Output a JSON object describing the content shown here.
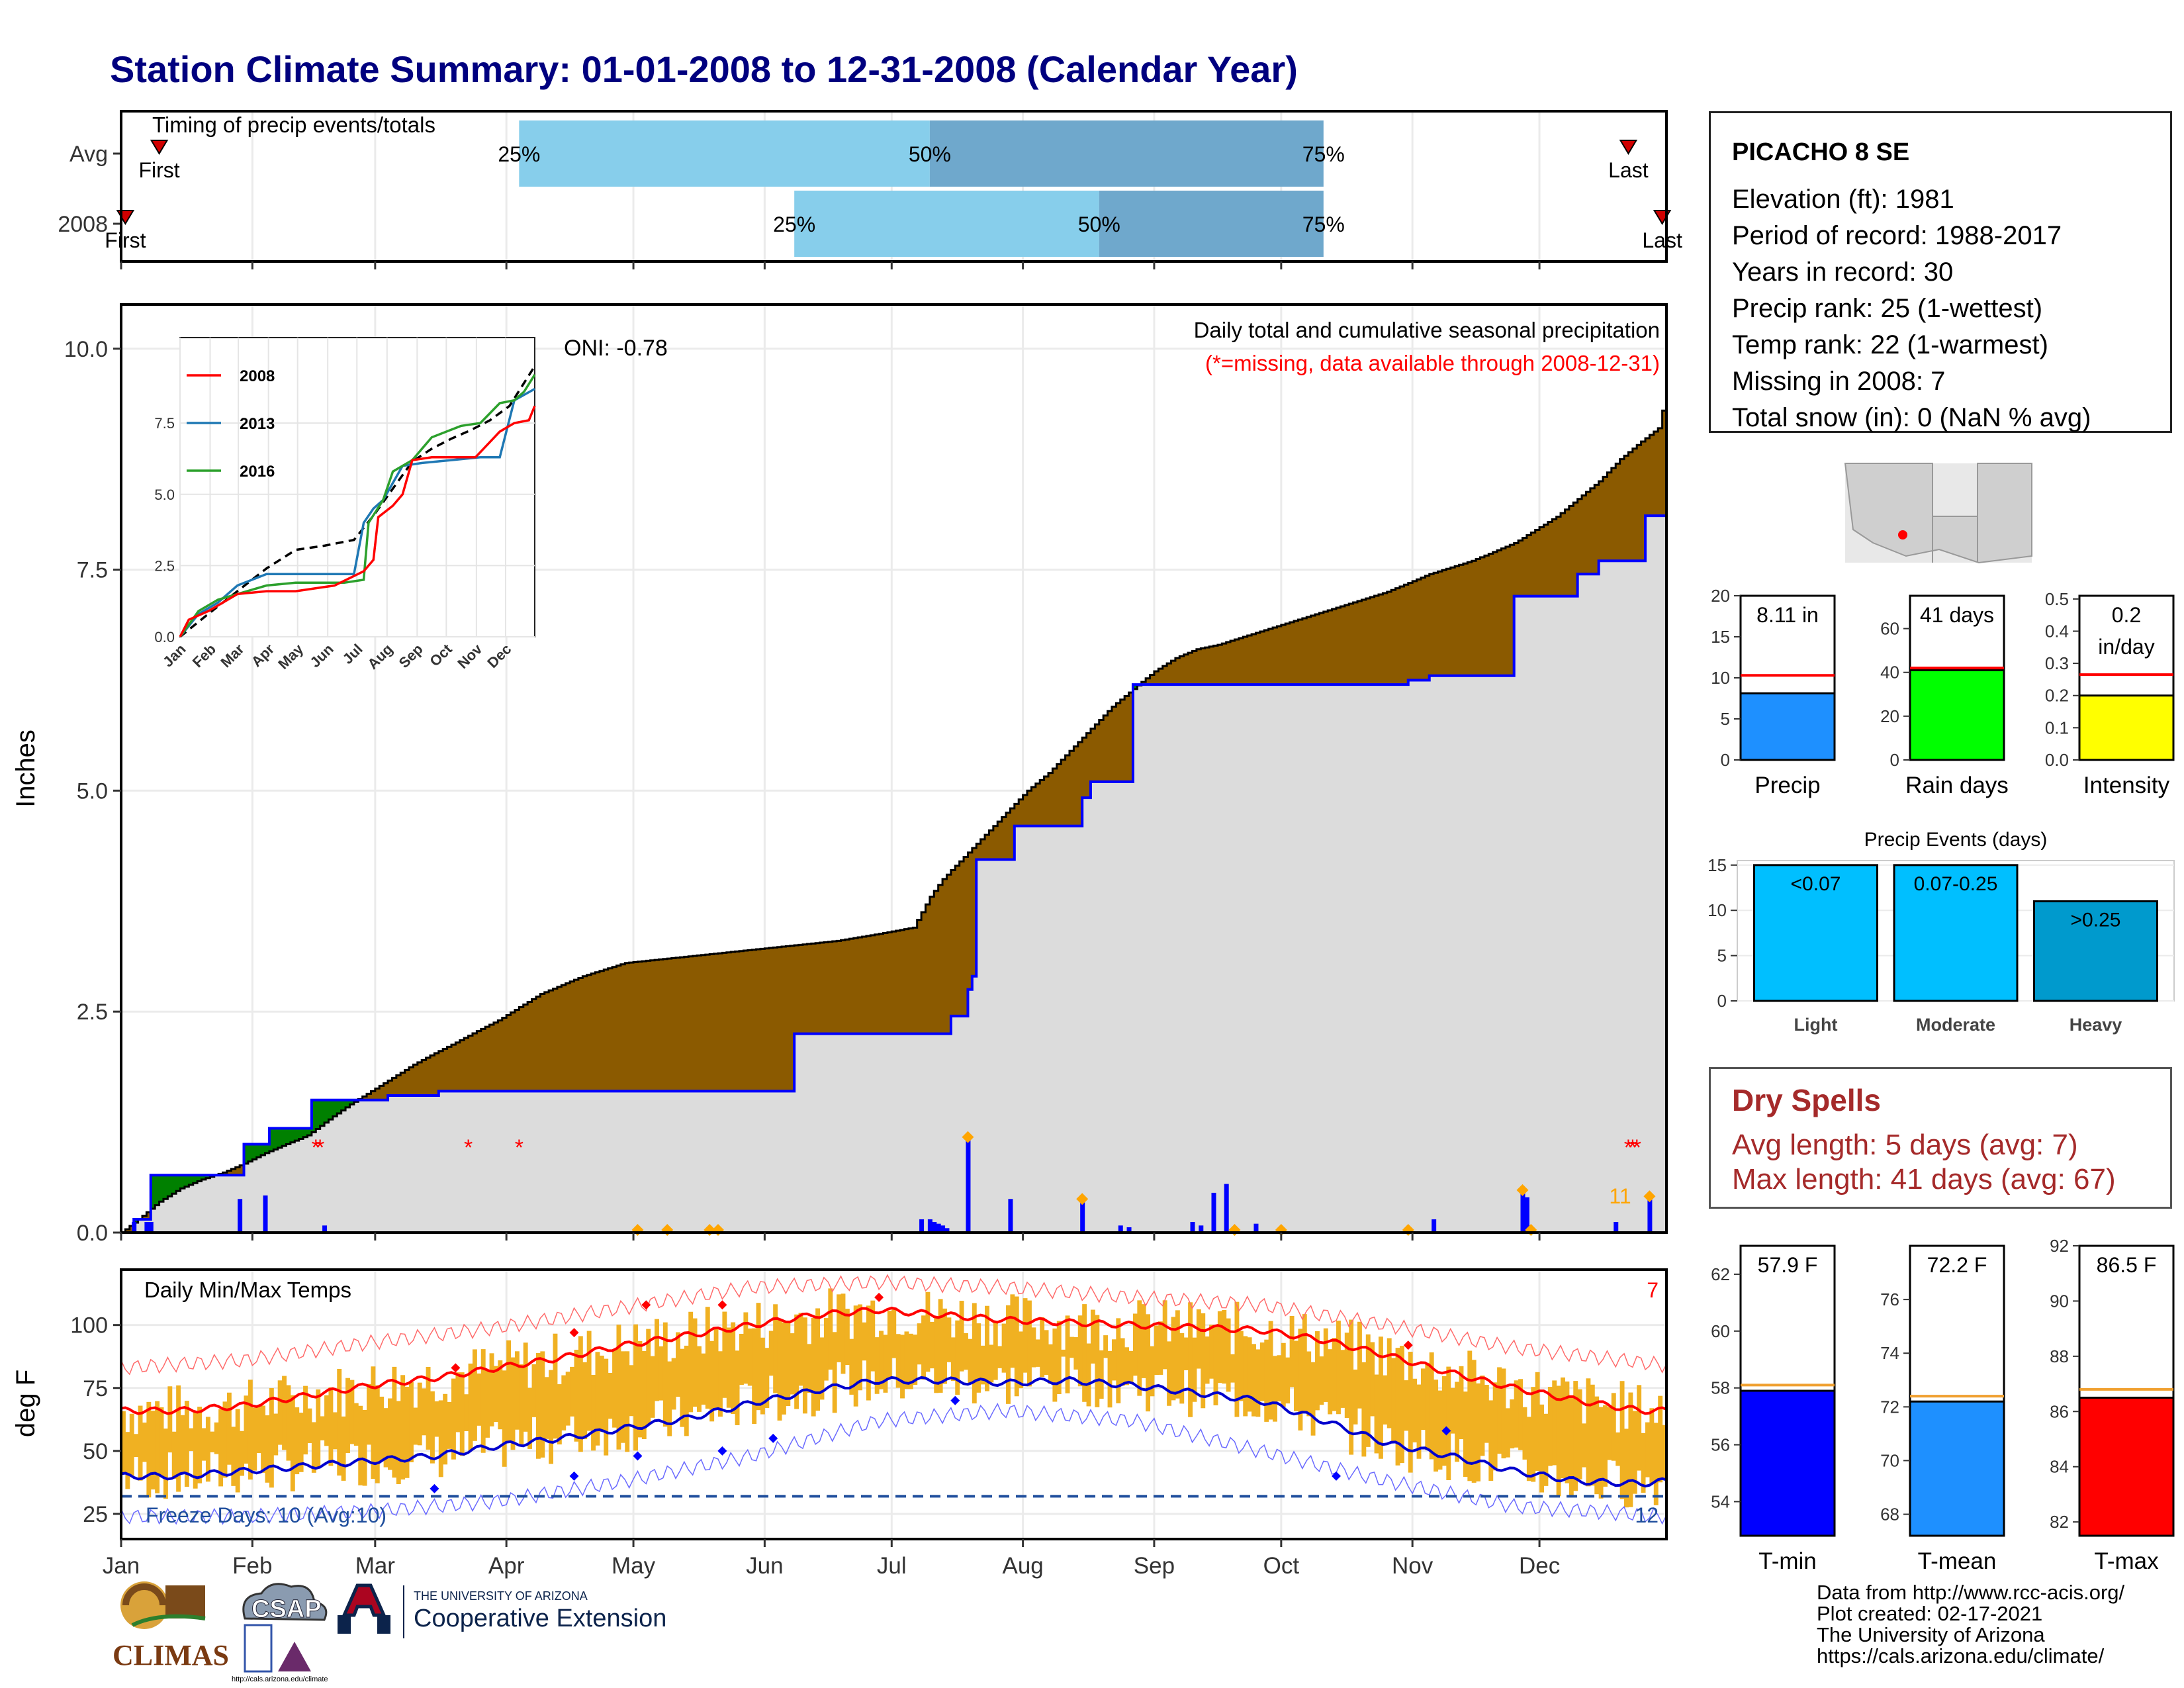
{
  "title": "Station Climate Summary: 01-01-2008 to 12-31-2008 (Calendar Year)",
  "info": {
    "station": "PICACHO 8 SE",
    "lines": [
      "Elevation (ft): 1981",
      "Period of record: 1988-2017",
      "Years in record: 30",
      "Precip rank: 25 (1-wettest)",
      "Temp rank: 22 (1-warmest)",
      "Missing in 2008: 7",
      "Total snow (in): 0 (NaN % avg)"
    ]
  },
  "dry_spells": {
    "heading": "Dry Spells",
    "avg": "Avg length: 5 days (avg: 7)",
    "max": "Max length: 41 days (avg: 67)"
  },
  "credits": [
    "Data from http://www.rcc-acis.org/",
    "Plot created: 02-17-2021",
    "The University of Arizona",
    "https://cals.arizona.edu/climate/"
  ],
  "logos": {
    "climas": "CLIMAS",
    "csap": "CSAP",
    "ua_small": "THE UNIVERSITY OF ARIZONA",
    "ua_big": "Cooperative Extension",
    "csap_url": "http://cals.arizona.edu/climate"
  },
  "colors": {
    "title": "#00007f",
    "observed_fill": "#dcdcdc",
    "deficit_fill": "#8b5a00",
    "surplus_fill": "#008000",
    "daily_bar": "#0000ff",
    "temp_bar": "#f0b122",
    "tmax_line": "#ff0000",
    "tmin_line": "#0000cd",
    "q_light": "#87ceeb",
    "q_dark": "#6fa8cc"
  },
  "timing_panel": {
    "label": "Timing of precip events/totals",
    "rows": [
      {
        "name": "Avg",
        "first_doy": 10,
        "q25_doy": 95,
        "q50_doy": 192,
        "q75_doy": 285,
        "last_doy": 357,
        "first_label": "First",
        "last_label": "Last"
      },
      {
        "name": "2008",
        "first_doy": 2,
        "q25_doy": 160,
        "q50_doy": 232,
        "q75_doy": 285,
        "last_doy": 365,
        "first_label": "First",
        "last_label": "Last"
      }
    ],
    "q_labels": [
      "25%",
      "50%",
      "75%"
    ]
  },
  "chart_data": [
    {
      "type": "area",
      "name": "cumulative_precip",
      "title": "Daily total and cumulative seasonal precipitation",
      "subtitle": "(*=missing, data available through 2008-12-31)",
      "oni": "ONI: -0.78",
      "ylabel": "Inches",
      "ylim": [
        0,
        10.5
      ],
      "yticks": [
        0,
        2.5,
        5,
        7.5,
        10
      ],
      "ytick_labels": [
        "0.0",
        "2.5",
        "5.0",
        "7.5",
        "10.0"
      ],
      "x_doy_range": [
        1,
        366
      ],
      "avg_cumulative": {
        "doy": [
          1,
          5,
          10,
          15,
          20,
          25,
          30,
          35,
          45,
          50,
          55,
          60,
          65,
          70,
          75,
          80,
          85,
          90,
          95,
          100,
          110,
          120,
          130,
          140,
          150,
          160,
          170,
          180,
          188,
          192,
          195,
          200,
          205,
          210,
          215,
          220,
          225,
          230,
          235,
          240,
          245,
          250,
          255,
          260,
          270,
          280,
          290,
          300,
          310,
          320,
          330,
          340,
          350,
          355,
          360,
          364,
          366
        ],
        "values": [
          0,
          0.15,
          0.35,
          0.5,
          0.6,
          0.68,
          0.78,
          0.9,
          1.1,
          1.28,
          1.45,
          1.6,
          1.75,
          1.9,
          2.03,
          2.15,
          2.28,
          2.4,
          2.55,
          2.7,
          2.9,
          3.05,
          3.1,
          3.15,
          3.2,
          3.25,
          3.3,
          3.38,
          3.45,
          3.8,
          4.0,
          4.25,
          4.5,
          4.75,
          5.0,
          5.2,
          5.45,
          5.7,
          5.95,
          6.15,
          6.35,
          6.5,
          6.6,
          6.65,
          6.8,
          6.95,
          7.1,
          7.25,
          7.45,
          7.6,
          7.8,
          8.1,
          8.5,
          8.75,
          8.95,
          9.1,
          9.5
        ]
      },
      "obs_cumulative": {
        "doy": [
          1,
          4,
          8,
          22,
          30,
          30,
          36,
          36,
          46,
          46,
          55,
          64,
          76,
          123,
          145,
          160,
          160,
          180,
          190,
          197,
          201,
          202,
          203,
          210,
          212,
          222,
          228,
          230,
          240,
          250,
          260,
          305,
          310,
          312,
          316,
          330,
          330,
          335,
          345,
          350,
          355,
          360,
          361,
          366
        ],
        "values": [
          0,
          0.15,
          0.65,
          0.65,
          0.78,
          1.0,
          1.0,
          1.18,
          1.18,
          1.5,
          1.5,
          1.55,
          1.6,
          1.6,
          1.6,
          1.72,
          2.25,
          2.25,
          2.25,
          2.45,
          2.75,
          2.9,
          4.22,
          4.22,
          4.6,
          4.6,
          4.92,
          5.1,
          6.2,
          6.2,
          6.2,
          6.25,
          6.3,
          6.3,
          6.3,
          6.3,
          7.2,
          7.2,
          7.45,
          7.6,
          7.6,
          7.6,
          8.11,
          8.11
        ]
      },
      "daily_precip": {
        "doy": [
          4,
          7,
          8,
          29,
          35,
          49,
          190,
          192,
          193,
          194,
          195,
          196,
          201,
          211,
          228,
          237,
          239,
          254,
          256,
          259,
          262,
          269,
          311,
          332,
          333,
          354,
          362
        ],
        "values": [
          0.12,
          0.12,
          0.12,
          0.38,
          0.42,
          0.08,
          0.15,
          0.15,
          0.12,
          0.1,
          0.08,
          0.05,
          1.05,
          0.38,
          0.35,
          0.08,
          0.06,
          0.12,
          0.08,
          0.45,
          0.55,
          0.1,
          0.15,
          0.45,
          0.4,
          0.12,
          0.38
        ]
      },
      "missing_doy": [
        47,
        48,
        83,
        95,
        357,
        358,
        359
      ],
      "missing_marker": "*",
      "orange_marker_doy": [
        123,
        130,
        140,
        142,
        201,
        228,
        264,
        275,
        305,
        332,
        334,
        362
      ],
      "count_label": "11"
    },
    {
      "type": "line",
      "name": "inset_cumulative",
      "series": [
        {
          "name": "2008",
          "color": "#ff0000"
        },
        {
          "name": "2013",
          "color": "#1f78b4"
        },
        {
          "name": "2016",
          "color": "#2ca02c"
        }
      ],
      "xticks": [
        "Jan",
        "Feb",
        "Mar",
        "Apr",
        "May",
        "Jun",
        "Jul",
        "Aug",
        "Sep",
        "Oct",
        "Nov",
        "Dec"
      ],
      "ylim": [
        0,
        10.5
      ],
      "yticks": [
        "0.0",
        "2.5",
        "5.0",
        "7.5"
      ],
      "values": {
        "avg": {
          "doy": [
            1,
            30,
            60,
            90,
            120,
            150,
            180,
            200,
            220,
            240,
            260,
            280,
            300,
            320,
            340,
            366
          ],
          "values": [
            0,
            0.8,
            1.6,
            2.4,
            3.05,
            3.2,
            3.4,
            4.25,
            5.2,
            6.15,
            6.6,
            6.95,
            7.25,
            7.6,
            8.1,
            9.5
          ]
        },
        "2008": {
          "doy": [
            1,
            10,
            30,
            60,
            90,
            120,
            160,
            190,
            200,
            205,
            220,
            230,
            240,
            260,
            305,
            330,
            345,
            360,
            366
          ],
          "values": [
            0,
            0.6,
            0.9,
            1.5,
            1.6,
            1.6,
            1.8,
            2.3,
            2.7,
            4.2,
            4.6,
            5.0,
            6.2,
            6.3,
            6.3,
            7.2,
            7.5,
            7.6,
            8.1
          ]
        },
        "2013": {
          "doy": [
            1,
            20,
            40,
            60,
            90,
            120,
            150,
            180,
            190,
            200,
            210,
            230,
            250,
            280,
            310,
            330,
            345,
            366
          ],
          "values": [
            0,
            0.8,
            1.2,
            1.8,
            2.2,
            2.2,
            2.2,
            2.2,
            4.0,
            4.5,
            4.8,
            6.0,
            6.1,
            6.2,
            6.3,
            6.3,
            8.3,
            8.7
          ]
        },
        "2016": {
          "doy": [
            1,
            20,
            40,
            60,
            90,
            120,
            150,
            170,
            190,
            195,
            210,
            220,
            240,
            260,
            290,
            310,
            330,
            345,
            355,
            366
          ],
          "values": [
            0,
            0.9,
            1.3,
            1.5,
            1.8,
            1.9,
            1.9,
            1.9,
            2.0,
            4.0,
            4.8,
            5.8,
            6.2,
            7.0,
            7.4,
            7.5,
            8.2,
            8.3,
            8.6,
            9.2
          ]
        }
      }
    },
    {
      "type": "bar",
      "name": "daily_temps",
      "title": "Daily Min/Max Temps",
      "ylabel": "deg F",
      "ylim": [
        15,
        122
      ],
      "yticks": [
        25,
        50,
        75,
        100
      ],
      "freeze_label": "Freeze Days: 10 (Avg:10)",
      "freeze_line": 32,
      "top_count": "7",
      "bottom_count": "12",
      "avg_tmax": {
        "doy": [
          1,
          15,
          30,
          45,
          60,
          75,
          90,
          105,
          120,
          135,
          150,
          165,
          180,
          195,
          210,
          225,
          240,
          255,
          270,
          285,
          300,
          315,
          330,
          345,
          360,
          366
        ],
        "values": [
          66,
          66,
          68,
          72,
          76,
          79,
          83,
          87,
          92,
          96,
          100,
          104,
          106,
          104,
          102,
          101,
          100,
          99,
          98,
          94,
          88,
          81,
          75,
          70,
          66,
          66
        ]
      },
      "avg_tmin": {
        "doy": [
          1,
          15,
          30,
          45,
          60,
          75,
          90,
          105,
          120,
          135,
          150,
          165,
          180,
          195,
          210,
          225,
          240,
          255,
          270,
          285,
          300,
          315,
          330,
          345,
          360,
          366
        ],
        "values": [
          40,
          40,
          42,
          44,
          46,
          48,
          52,
          55,
          59,
          63,
          69,
          74,
          78,
          78,
          77,
          78,
          76,
          73,
          70,
          62,
          53,
          48,
          42,
          38,
          37,
          38
        ]
      },
      "record_tmax": {
        "doy": [
          1,
          30,
          60,
          90,
          120,
          150,
          180,
          210,
          240,
          270,
          300,
          330,
          366
        ],
        "values": [
          83,
          86,
          93,
          99,
          107,
          115,
          117,
          115,
          111,
          108,
          100,
          91,
          84
        ]
      },
      "record_tmin": {
        "doy": [
          1,
          30,
          60,
          90,
          120,
          150,
          180,
          210,
          240,
          270,
          300,
          330,
          366
        ],
        "values": [
          24,
          24,
          26,
          30,
          38,
          48,
          62,
          66,
          62,
          50,
          38,
          28,
          24
        ]
      },
      "daily": {
        "doy_step": 1,
        "tmax_note": "daily max per day (estimated)",
        "tmin_note": "daily min per day (estimated)"
      },
      "x_month_labels": [
        "Jan",
        "Feb",
        "Mar",
        "Apr",
        "May",
        "Jun",
        "Jul",
        "Aug",
        "Sep",
        "Oct",
        "Nov",
        "Dec"
      ]
    },
    {
      "type": "bar",
      "name": "precip_total_gauge",
      "value": 8.11,
      "avg": 10.3,
      "label_top": "8.11 in",
      "xlabel": "Precip",
      "ylim": [
        0,
        20
      ],
      "yticks": [
        "0",
        "5",
        "10",
        "15",
        "20"
      ],
      "color": "#1e90ff"
    },
    {
      "type": "bar",
      "name": "rain_days_gauge",
      "value": 41,
      "avg": 42,
      "label_top": "41 days",
      "xlabel": "Rain days",
      "ylim": [
        0,
        75
      ],
      "yticks": [
        "0",
        "20",
        "40",
        "60"
      ],
      "color": "#00ff00"
    },
    {
      "type": "bar",
      "name": "intensity_gauge",
      "value": 0.2,
      "avg": 0.265,
      "label_top": "0.2\nin/day",
      "label_top_lines": [
        "0.2",
        "in/day"
      ],
      "xlabel": "Intensity",
      "ylim": [
        0,
        0.51
      ],
      "yticks": [
        "0.0",
        "0.1",
        "0.2",
        "0.3",
        "0.4",
        "0.5"
      ],
      "color": "#ffff00"
    },
    {
      "type": "bar",
      "name": "precip_events",
      "title": "Precip Events (days)",
      "categories": [
        "Light",
        "Moderate",
        "Heavy"
      ],
      "values": [
        15,
        15,
        11
      ],
      "bar_labels": [
        "<0.07",
        "0.07-0.25",
        ">0.25"
      ],
      "colors": [
        "#00bfff",
        "#00bfff",
        "#009acd"
      ],
      "ylim": [
        0,
        15.5
      ],
      "yticks": [
        "0",
        "5",
        "10",
        "15"
      ]
    },
    {
      "type": "bar",
      "name": "tmin_gauge",
      "value": 57.9,
      "avg": 58.1,
      "label_top": "57.9 F",
      "xlabel": "T-min",
      "ylim": [
        52.8,
        63.0
      ],
      "yticks": [
        "54",
        "56",
        "58",
        "60",
        "62"
      ],
      "color": "#0000ff"
    },
    {
      "type": "bar",
      "name": "tmean_gauge",
      "value": 72.2,
      "avg": 72.4,
      "label_top": "72.2 F",
      "xlabel": "T-mean",
      "ylim": [
        67.2,
        78.0
      ],
      "yticks": [
        "68",
        "70",
        "72",
        "74",
        "76"
      ],
      "color": "#1e90ff"
    },
    {
      "type": "bar",
      "name": "tmax_gauge",
      "value": 86.5,
      "avg": 86.8,
      "label_top": "86.5 F",
      "xlabel": "T-max",
      "ylim": [
        81.5,
        92.0
      ],
      "yticks": [
        "82",
        "84",
        "86",
        "88",
        "90",
        "92"
      ],
      "color": "#ff0000"
    }
  ]
}
